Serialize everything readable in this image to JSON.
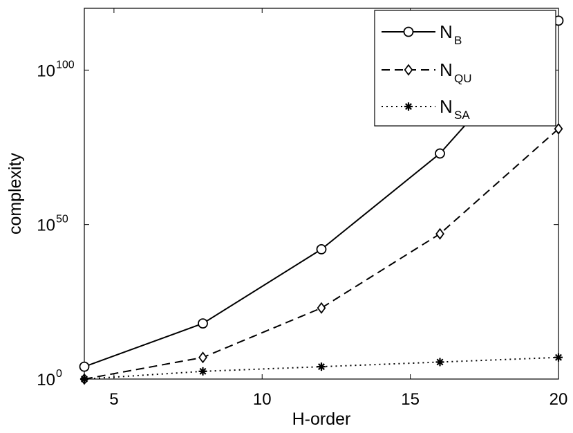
{
  "chart_data": {
    "type": "line",
    "xlabel": "H-order",
    "ylabel": "complexity",
    "xlim": [
      4,
      20
    ],
    "ylim": [
      0,
      120
    ],
    "yscale": "log10 (values are exponents)",
    "x_ticks": [
      5,
      10,
      15,
      20
    ],
    "y_ticks": [
      {
        "exp": 0,
        "base": "10",
        "sup": "0"
      },
      {
        "exp": 50,
        "base": "10",
        "sup": "50"
      },
      {
        "exp": 100,
        "base": "10",
        "sup": "100"
      }
    ],
    "grid": false,
    "legend_position": "top-right",
    "series": [
      {
        "main": "N",
        "sub": "B",
        "x": [
          4,
          8,
          12,
          16,
          20
        ],
        "y": [
          4,
          18,
          42,
          73,
          116
        ],
        "line": "solid",
        "marker": "circle"
      },
      {
        "main": "N",
        "sub": "QU",
        "x": [
          4,
          8,
          12,
          16,
          20
        ],
        "y": [
          0,
          7,
          23,
          47,
          81
        ],
        "line": "dashed",
        "marker": "diamond"
      },
      {
        "main": "N",
        "sub": "SA",
        "x": [
          4,
          8,
          12,
          16,
          20
        ],
        "y": [
          0,
          2.5,
          4,
          5.5,
          7
        ],
        "line": "dotted",
        "marker": "star"
      }
    ]
  }
}
